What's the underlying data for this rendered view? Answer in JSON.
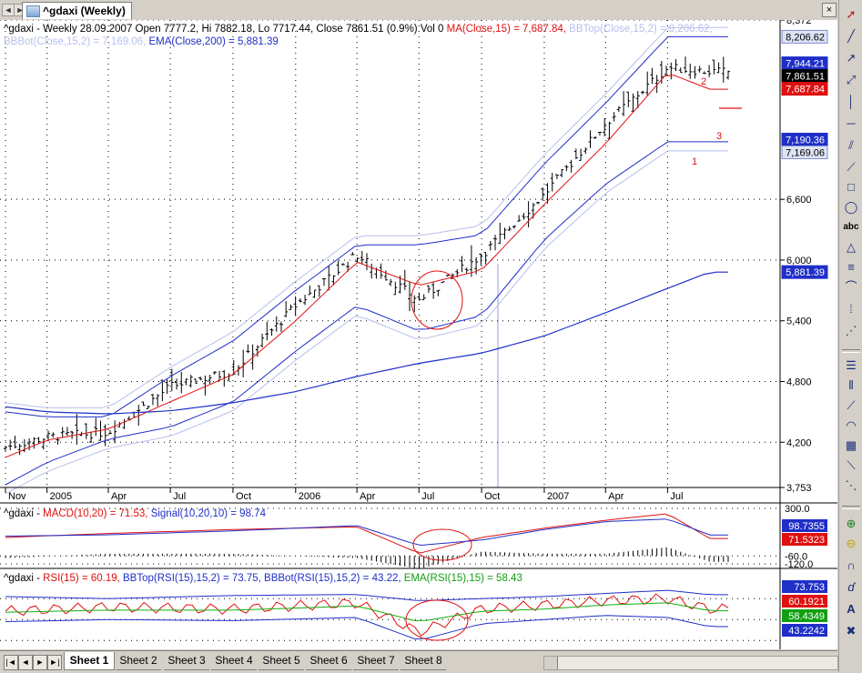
{
  "window": {
    "title": "^gdaxi (Weekly)",
    "close_glyph": "×"
  },
  "tab_nav": {
    "prev": "◄",
    "next": "►"
  },
  "price_panel": {
    "info_prefix": "^gdaxi - Weekly 28.09.2007 Open 7777.2, Hi 7882.18, Lo 7717.44, Close 7861.51 (0.9%) Vol 0 ",
    "ma_text": "MA(Close,15) = 7,687.84, ",
    "bbtop_text": "BBTop(Close,15,2) = 8,206.62,",
    "bbbot_text": "BBBot(Close,15,2) = 7,169.06, ",
    "ema_text": "EMA(Close,200) = 5,881.39",
    "axis_ticks": [
      "8,372",
      "6,600",
      "6,000",
      "5,400",
      "4,800",
      "4,200",
      "3,753"
    ],
    "x_labels": [
      "Nov",
      "2005",
      "Apr",
      "Jul",
      "Oct",
      "2006",
      "Apr",
      "Jul",
      "Oct",
      "2007",
      "Apr",
      "Jul"
    ],
    "value_boxes": [
      {
        "label": "8,206.62",
        "fg": "#000000",
        "bg": "#dde3f4",
        "border": "#7f8fcf"
      },
      {
        "label": "7,944.21",
        "fg": "#ffffff",
        "bg": "#1f2fc8",
        "border": "#1f2fc8"
      },
      {
        "label": "7,861.51",
        "fg": "#ffffff",
        "bg": "#000000",
        "border": "#000000"
      },
      {
        "label": "7,687.84",
        "fg": "#ffffff",
        "bg": "#e01010",
        "border": "#e01010"
      },
      {
        "label": "7,190.36",
        "fg": "#ffffff",
        "bg": "#1f2fc8",
        "border": "#1f2fc8"
      },
      {
        "label": "7,169.06",
        "fg": "#000000",
        "bg": "#dde3f4",
        "border": "#7f8fcf"
      },
      {
        "label": "5,881.39",
        "fg": "#ffffff",
        "bg": "#1f2fc8",
        "border": "#1f2fc8"
      }
    ],
    "wave_labels": [
      "1",
      "2",
      "3"
    ]
  },
  "macd_panel": {
    "prefix": "^gdaxi - ",
    "macd_text": "MACD(10,20) = 71.53, ",
    "signal_text": "Signal(10,20,10) = 98.74",
    "axis_ticks": [
      "300.0",
      "-60.0",
      "-120.0"
    ],
    "value_boxes": [
      {
        "label": "98.7355",
        "fg": "#ffffff",
        "bg": "#1f2fc8"
      },
      {
        "label": "71.5323",
        "fg": "#ffffff",
        "bg": "#e01010"
      }
    ]
  },
  "rsi_panel": {
    "prefix": "^gdaxi - ",
    "rsi_text": "RSI(15) = 60.19, ",
    "bbtop_text": "BBTop(RSI(15),15,2) = 73.75, ",
    "bbbot_text": "BBBot(RSI(15),15,2) = 43.22, ",
    "ema_text": "EMA(RSI(15),15) = 58.43",
    "value_boxes": [
      {
        "label": "73.753",
        "fg": "#ffffff",
        "bg": "#1f2fc8"
      },
      {
        "label": "60.1921",
        "fg": "#ffffff",
        "bg": "#e01010"
      },
      {
        "label": "58.4349",
        "fg": "#ffffff",
        "bg": "#10a010"
      },
      {
        "label": "43.2242",
        "fg": "#ffffff",
        "bg": "#1f2fc8"
      }
    ]
  },
  "colors": {
    "price": "#000000",
    "ma": "#e01010",
    "bb": "#1f2fc8",
    "bb_light": "#b8c0ec",
    "ema": "#1f2fc8",
    "rsi_ema": "#10b010",
    "annot": "#e01010"
  },
  "sheets": {
    "nav": [
      "|◄",
      "◄",
      "►",
      "►|"
    ],
    "tabs": [
      "Sheet 1",
      "Sheet 2",
      "Sheet 3",
      "Sheet 4",
      "Sheet 5",
      "Sheet 6",
      "Sheet 7",
      "Sheet 8"
    ]
  },
  "toolbar": {
    "text_tool": "abc"
  },
  "chart_data": [
    {
      "type": "line",
      "title": "^gdaxi (Weekly)",
      "x": [
        "2004-11",
        "2005-01",
        "2005-04",
        "2005-07",
        "2005-10",
        "2006-01",
        "2006-04",
        "2006-07",
        "2006-10",
        "2007-01",
        "2007-04",
        "2007-07",
        "2007-09"
      ],
      "series": [
        {
          "name": "Close",
          "values": [
            4150,
            4250,
            4300,
            4750,
            4900,
            5550,
            6050,
            5600,
            6050,
            6650,
            7350,
            7900,
            7861
          ]
        },
        {
          "name": "MA(Close,15)",
          "values": [
            4050,
            4220,
            4330,
            4600,
            4870,
            5400,
            5980,
            5750,
            5900,
            6550,
            7150,
            7850,
            7688
          ]
        },
        {
          "name": "BBTop(Close,15,2)",
          "values": [
            4500,
            4450,
            4450,
            4850,
            5200,
            5700,
            6150,
            6150,
            6250,
            6950,
            7550,
            8206,
            8207
          ]
        },
        {
          "name": "BBBot(Close,15,2)",
          "values": [
            3780,
            4000,
            4230,
            4350,
            4600,
            5100,
            5550,
            5300,
            5450,
            6200,
            6750,
            7169,
            7169
          ]
        },
        {
          "name": "EMA(Close,200)",
          "values": [
            4550,
            4500,
            4480,
            4510,
            4590,
            4700,
            4850,
            4980,
            5080,
            5250,
            5480,
            5720,
            5881
          ]
        }
      ],
      "ylim": [
        3753,
        8372
      ]
    },
    {
      "type": "line",
      "x": [
        "2004-11",
        "2005-04",
        "2005-10",
        "2006-04",
        "2006-07",
        "2006-10",
        "2007-01",
        "2007-04",
        "2007-07",
        "2007-09"
      ],
      "series": [
        {
          "name": "MACD(10,20)",
          "values": [
            80,
            110,
            140,
            160,
            -40,
            80,
            150,
            210,
            260,
            72
          ]
        },
        {
          "name": "Signal(10,20,10)",
          "values": [
            90,
            100,
            130,
            170,
            20,
            60,
            140,
            200,
            220,
            99
          ]
        }
      ],
      "ylim": [
        -120,
        300
      ]
    },
    {
      "type": "line",
      "x": [
        "2004-11",
        "2005-04",
        "2005-10",
        "2006-04",
        "2006-07",
        "2006-10",
        "2007-01",
        "2007-04",
        "2007-07",
        "2007-09"
      ],
      "series": [
        {
          "name": "RSI(15)",
          "values": [
            58,
            62,
            60,
            66,
            38,
            60,
            64,
            68,
            70,
            60.19
          ]
        },
        {
          "name": "BBTop(RSI(15),15,2)",
          "values": [
            72,
            70,
            73,
            74,
            68,
            70,
            72,
            75,
            78,
            73.75
          ]
        },
        {
          "name": "BBBot(RSI(15),15,2)",
          "values": [
            48,
            50,
            49,
            52,
            30,
            46,
            50,
            54,
            52,
            43.22
          ]
        },
        {
          "name": "EMA(RSI(15),15)",
          "values": [
            57,
            59,
            59,
            63,
            48,
            58,
            60,
            64,
            66,
            58.43
          ]
        }
      ],
      "ylim": [
        25,
        85
      ]
    }
  ]
}
